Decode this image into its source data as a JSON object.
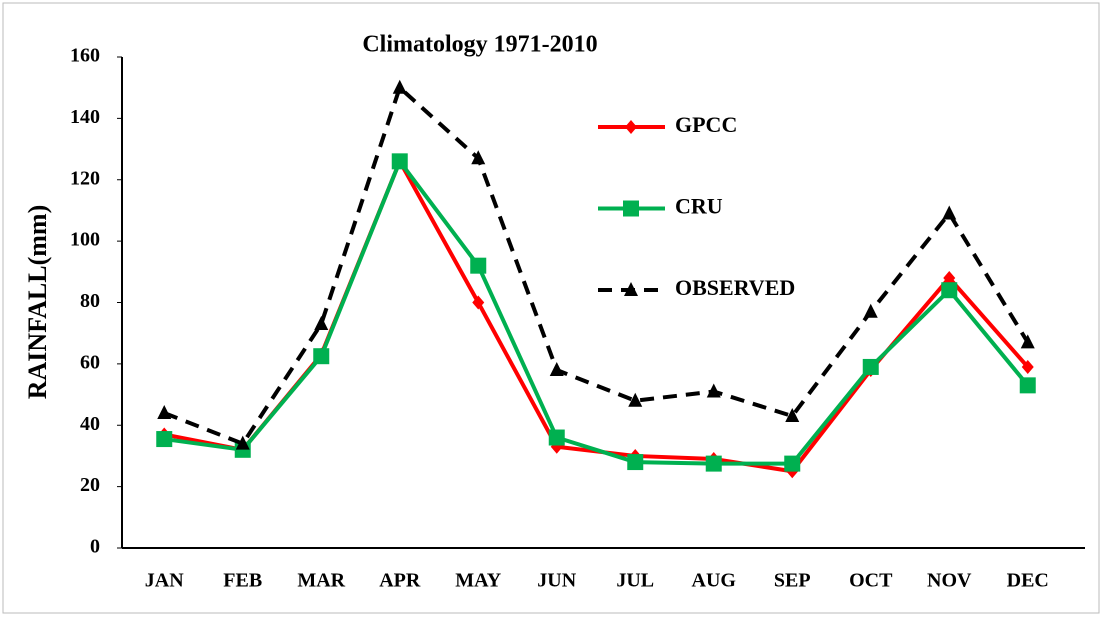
{
  "chart_data": {
    "type": "line",
    "title": "Climatology 1971-2010",
    "y_label": "RAINFALL(mm)",
    "categories": [
      "JAN",
      "FEB",
      "MAR",
      "APR",
      "MAY",
      "JUN",
      "JUL",
      "AUG",
      "SEP",
      "OCT",
      "NOV",
      "DEC"
    ],
    "series": [
      {
        "name": "GPCC",
        "color": "#ff0000",
        "marker": "diamond",
        "dashed": false,
        "values": [
          37,
          32,
          63,
          126,
          80,
          33,
          30,
          29,
          25,
          58,
          88,
          59
        ]
      },
      {
        "name": "CRU",
        "color": "#00b050",
        "marker": "square",
        "dashed": false,
        "values": [
          35.5,
          32,
          62.5,
          126,
          92,
          36,
          28,
          27.5,
          27.5,
          59,
          84,
          53
        ]
      },
      {
        "name": "OBSERVED",
        "color": "#000000",
        "marker": "triangle",
        "dashed": true,
        "values": [
          44,
          34,
          73,
          150,
          127,
          58,
          48,
          51,
          43,
          77,
          109,
          67
        ]
      }
    ],
    "ylim": [
      0,
      160
    ],
    "yticks": [
      0,
      20,
      40,
      60,
      80,
      100,
      120,
      140,
      160
    ],
    "grid": false
  }
}
